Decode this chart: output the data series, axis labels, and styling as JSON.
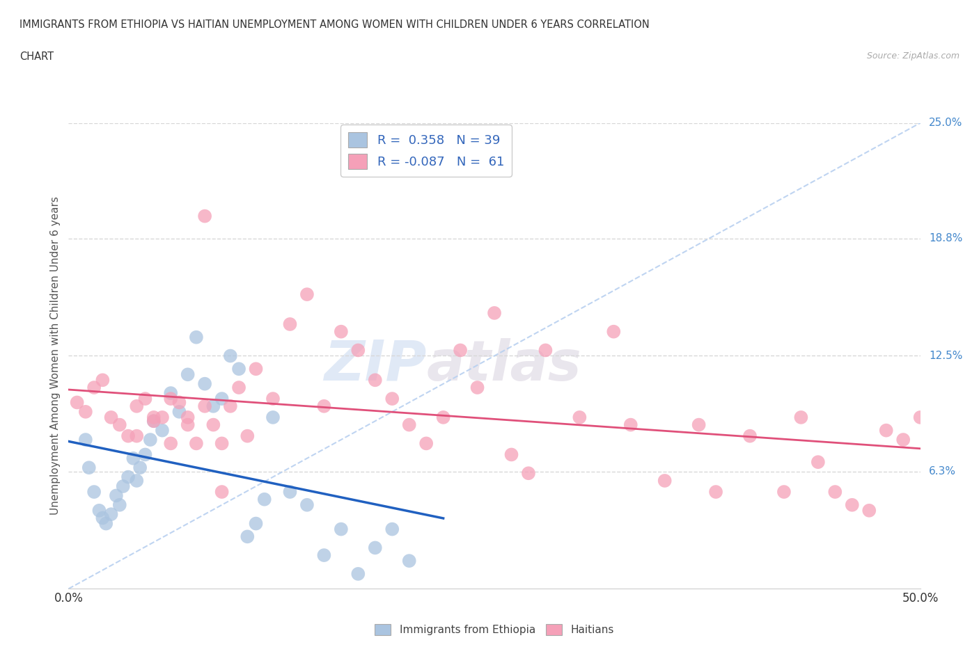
{
  "title_line1": "IMMIGRANTS FROM ETHIOPIA VS HAITIAN UNEMPLOYMENT AMONG WOMEN WITH CHILDREN UNDER 6 YEARS CORRELATION",
  "title_line2": "CHART",
  "source_text": "Source: ZipAtlas.com",
  "ylabel": "Unemployment Among Women with Children Under 6 years",
  "xlim": [
    0,
    50
  ],
  "ylim": [
    0,
    25
  ],
  "background_color": "#ffffff",
  "grid_color": "#d8d8d8",
  "ethiopia_scatter_color": "#aac4e0",
  "haiti_scatter_color": "#f5a0b8",
  "ethiopia_line_color": "#2060c0",
  "haiti_line_color": "#e0507a",
  "diagonal_color": "#b8d0f0",
  "R_ethiopia": 0.358,
  "N_ethiopia": 39,
  "R_haiti": -0.087,
  "N_haiti": 61,
  "legend_label_ethiopia": "Immigrants from Ethiopia",
  "legend_label_haiti": "Haitians",
  "watermark_zip": "ZIP",
  "watermark_atlas": "atlas",
  "eth_x": [
    1.0,
    1.2,
    1.5,
    1.8,
    2.0,
    2.2,
    2.5,
    2.8,
    3.0,
    3.2,
    3.5,
    3.8,
    4.0,
    4.2,
    4.5,
    4.8,
    5.0,
    5.5,
    6.0,
    6.5,
    7.0,
    7.5,
    8.0,
    8.5,
    9.0,
    9.5,
    10.0,
    10.5,
    11.0,
    11.5,
    12.0,
    13.0,
    14.0,
    15.0,
    16.0,
    17.0,
    18.0,
    19.0,
    20.0
  ],
  "eth_y": [
    8.0,
    6.5,
    5.2,
    4.2,
    3.8,
    3.5,
    4.0,
    5.0,
    4.5,
    5.5,
    6.0,
    7.0,
    5.8,
    6.5,
    7.2,
    8.0,
    9.0,
    8.5,
    10.5,
    9.5,
    11.5,
    13.5,
    11.0,
    9.8,
    10.2,
    12.5,
    11.8,
    2.8,
    3.5,
    4.8,
    9.2,
    5.2,
    4.5,
    1.8,
    3.2,
    0.8,
    2.2,
    3.2,
    1.5
  ],
  "hai_x": [
    0.5,
    1.0,
    1.5,
    2.0,
    2.5,
    3.0,
    3.5,
    4.0,
    4.5,
    5.0,
    5.5,
    6.0,
    6.5,
    7.0,
    7.5,
    8.0,
    8.5,
    9.0,
    9.5,
    10.0,
    10.5,
    11.0,
    12.0,
    13.0,
    14.0,
    15.0,
    16.0,
    17.0,
    18.0,
    19.0,
    20.0,
    21.0,
    22.0,
    23.0,
    24.0,
    25.0,
    26.0,
    27.0,
    28.0,
    30.0,
    32.0,
    33.0,
    35.0,
    37.0,
    38.0,
    40.0,
    42.0,
    43.0,
    44.0,
    45.0,
    46.0,
    47.0,
    48.0,
    49.0,
    50.0,
    4.0,
    5.0,
    6.0,
    7.0,
    8.0,
    9.0
  ],
  "hai_y": [
    10.0,
    9.5,
    10.8,
    11.2,
    9.2,
    8.8,
    8.2,
    9.8,
    10.2,
    9.0,
    9.2,
    10.2,
    10.0,
    9.2,
    7.8,
    20.0,
    8.8,
    7.8,
    9.8,
    10.8,
    8.2,
    11.8,
    10.2,
    14.2,
    15.8,
    9.8,
    13.8,
    12.8,
    11.2,
    10.2,
    8.8,
    7.8,
    9.2,
    12.8,
    10.8,
    14.8,
    7.2,
    6.2,
    12.8,
    9.2,
    13.8,
    8.8,
    5.8,
    8.8,
    5.2,
    8.2,
    5.2,
    9.2,
    6.8,
    5.2,
    4.5,
    4.2,
    8.5,
    8.0,
    9.2,
    8.2,
    9.2,
    7.8,
    8.8,
    9.8,
    5.2
  ]
}
